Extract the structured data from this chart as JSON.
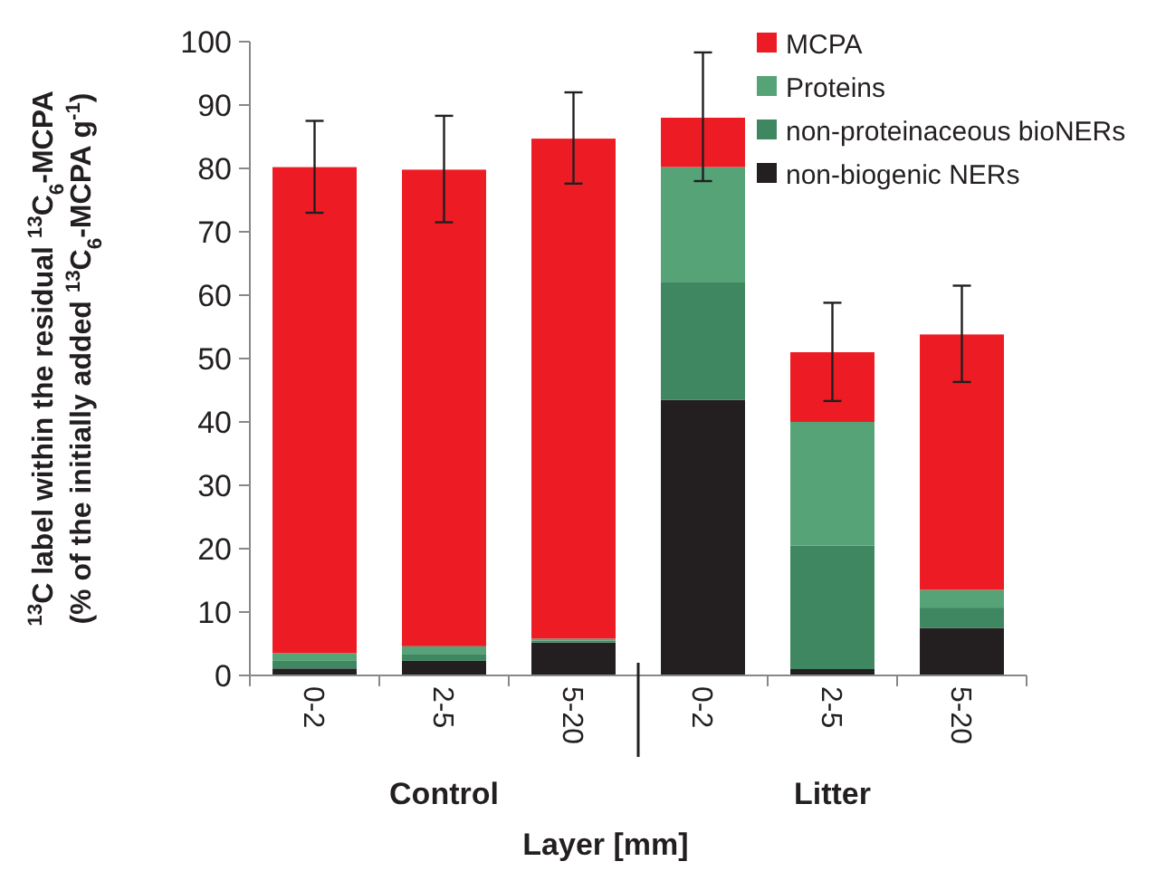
{
  "chart_data": {
    "type": "bar",
    "stacked": true,
    "categories": [
      "0-2",
      "2-5",
      "5-20",
      "0-2",
      "2-5",
      "5-20"
    ],
    "xlabel": "Layer [mm]",
    "ylabel": "$^{13}$C label within the residual $^{13}$C$_{6}$-MCPA (% of the initially added $^{13}$C$_{6}$-MCPA g$^{-1}$)",
    "annotations": [
      "Control",
      "Litter"
    ],
    "ylim": [
      0,
      100
    ],
    "yticks": [
      0,
      10,
      20,
      30,
      40,
      50,
      60,
      70,
      80,
      90,
      100
    ],
    "grid": false,
    "legend": "top right",
    "series": [
      {
        "name": "non-biogenic NERs",
        "color": "#231f20",
        "values": [
          1.1,
          2.3,
          5.2,
          43.5,
          1,
          7.5
        ]
      },
      {
        "name": "non-proteinaceous bioNERs",
        "color": "#3f8760",
        "values": [
          1.2,
          1.1,
          0.3,
          18.5,
          19.5,
          3.2
        ]
      },
      {
        "name": "Proteins",
        "color": "#55a377",
        "values": [
          1.2,
          1.2,
          0.3,
          18.2,
          19.5,
          2.8
        ]
      },
      {
        "name": "MCPA",
        "color": "#ed1c24",
        "values": [
          76.7,
          75.2,
          78.9,
          7.8,
          11,
          40.3
        ],
        "errors": [
          [
            73,
            87.5
          ],
          [
            71.5,
            88.3
          ],
          [
            77.6,
            92
          ],
          [
            78,
            98.3
          ],
          [
            43.3,
            58.8
          ],
          [
            46.3,
            61.5
          ]
        ]
      }
    ]
  }
}
